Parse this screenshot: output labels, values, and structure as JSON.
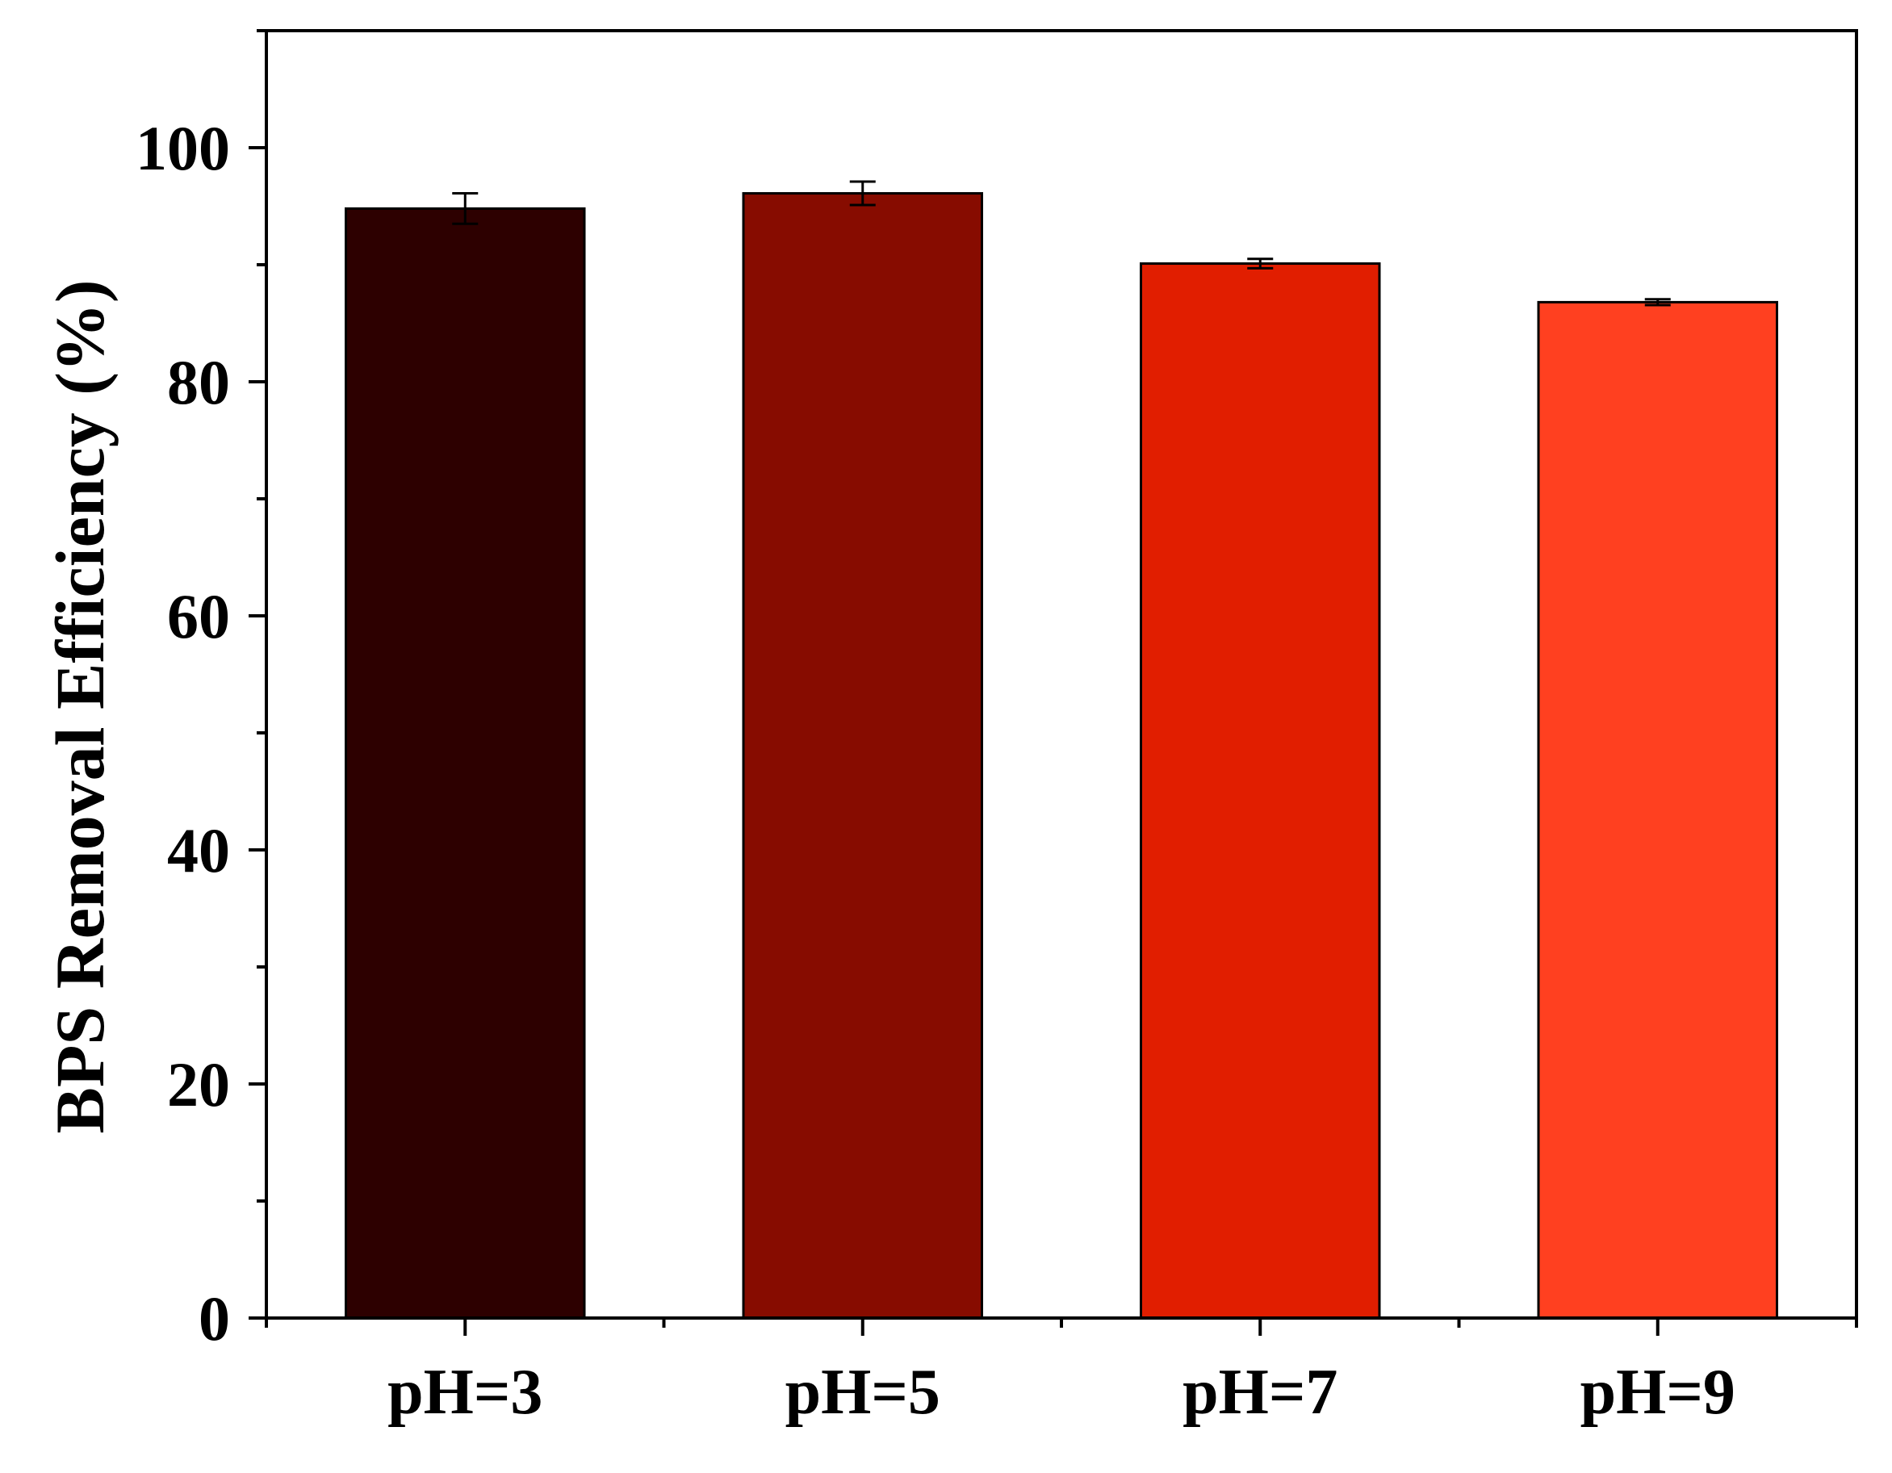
{
  "chart_data": {
    "type": "bar",
    "categories": [
      "pH=3",
      "pH=5",
      "pH=7",
      "pH=9"
    ],
    "values": [
      94.8,
      96.1,
      90.1,
      86.8
    ],
    "errors": [
      1.3,
      1.0,
      0.4,
      0.25
    ],
    "colors": [
      "#2d0000",
      "#870c00",
      "#e11e00",
      "#ff4020"
    ],
    "title": "",
    "xlabel": "",
    "ylabel": "BPS Removal Efficiency (%)",
    "ylim": [
      0,
      110
    ],
    "yticks": [
      0,
      20,
      40,
      60,
      80,
      100
    ],
    "yticks_minor": [
      10,
      30,
      50,
      70,
      90,
      110
    ],
    "grid": false,
    "legend": "none"
  }
}
